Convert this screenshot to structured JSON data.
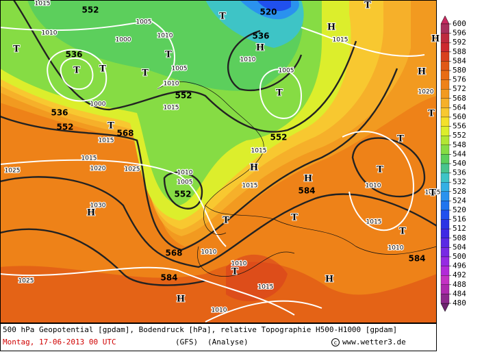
{
  "geopotential_labels": [
    "552",
    "520",
    "536",
    "536",
    "536",
    "552",
    "552",
    "568",
    "552",
    "552",
    "568",
    "584",
    "584",
    "584"
  ],
  "pressure_labels": [
    "1015",
    "1010",
    "1005",
    "1010",
    "1000",
    "1005",
    "1010",
    "1015",
    "1000",
    "1005",
    "1010",
    "1015",
    "1010",
    "1005",
    "1015",
    "1015",
    "1015",
    "1015",
    "1020",
    "1025",
    "1025",
    "1030",
    "1025",
    "1010",
    "1010",
    "1015",
    "1010",
    "1010",
    "1015",
    "1010",
    "1020",
    "1015"
  ],
  "centers": [
    "T",
    "T",
    "T",
    "T",
    "T",
    "T",
    "T",
    "T",
    "T",
    "T",
    "T",
    "T",
    "T",
    "T",
    "T",
    "T",
    "T",
    "H",
    "H",
    "H",
    "H",
    "H",
    "H",
    "H",
    "H",
    "H"
  ],
  "colorbar": {
    "labels": [
      600,
      596,
      592,
      588,
      584,
      580,
      576,
      572,
      568,
      564,
      560,
      556,
      552,
      548,
      544,
      540,
      536,
      532,
      528,
      524,
      520,
      516,
      512,
      508,
      504,
      500,
      496,
      492,
      488,
      484,
      480
    ],
    "colors": [
      "#a8305c",
      "#be2a3e",
      "#cc2a30",
      "#d8401e",
      "#e05816",
      "#e86c14",
      "#ee8218",
      "#f29a20",
      "#f6b02a",
      "#f8c830",
      "#f4e02a",
      "#dcee2c",
      "#b2e634",
      "#86dc44",
      "#5ccf5c",
      "#48c48e",
      "#3ec4c6",
      "#34b0e4",
      "#2a92ee",
      "#2074ee",
      "#2050ee",
      "#2a34e4",
      "#3e2ae4",
      "#5a2ae4",
      "#782ae4",
      "#962ae2",
      "#b22ad8",
      "#c432c4",
      "#ae2aae",
      "#8c288c"
    ],
    "top_color": "#c82a60",
    "bottom_color": "#6e2470"
  },
  "footer": {
    "line1": "500 hPa Geopotential [gpdam], Bodendruck [hPa], relative Topographie H500-H1000 [gpdam]",
    "date": "Montag, 17-06-2013  00 UTC",
    "model": "(GFS)",
    "run": "(Analyse)",
    "copyright": "www.wetter3.de"
  }
}
